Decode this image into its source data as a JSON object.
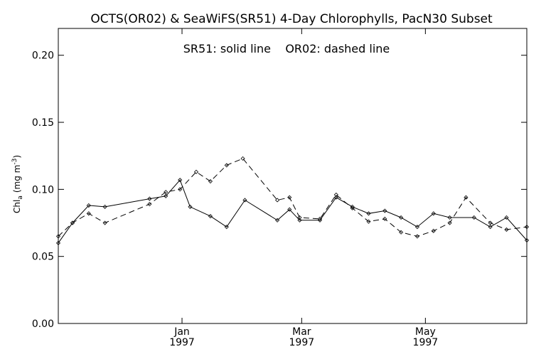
{
  "chart_data": {
    "type": "line",
    "title": "OCTS(OR02) & SeaWiFS(SR51) 4-Day Chlorophylls, PacN30 Subset",
    "annotation": "SR51: solid line    OR02: dashed line",
    "ylabel": "Chl_a (mg m^-3)",
    "ylabel_main": "Chl",
    "ylabel_sub": "a",
    "ylabel_units": "(mg m",
    "ylabel_exp": "-3",
    "ylabel_close": ")",
    "xlabel": "",
    "ylim": [
      0.0,
      0.22
    ],
    "xlim": [
      "1996-11-01",
      "1997-06-20"
    ],
    "yticks": [
      0.0,
      0.05,
      0.1,
      0.15,
      0.2
    ],
    "ytick_labels": [
      "0.00",
      "0.05",
      "0.10",
      "0.15",
      "0.20"
    ],
    "xticks": [
      {
        "date": "1997-01-01",
        "month": "Jan",
        "year": "1997"
      },
      {
        "date": "1997-03-01",
        "month": "Mar",
        "year": "1997"
      },
      {
        "date": "1997-05-01",
        "month": "May",
        "year": "1997"
      }
    ],
    "grid": false,
    "series": [
      {
        "name": "SR51",
        "style": "solid",
        "color": "#000000",
        "points": [
          [
            "1996-11-01",
            0.06
          ],
          [
            "1996-11-08",
            0.075
          ],
          [
            "1996-11-16",
            0.088
          ],
          [
            "1996-11-24",
            0.087
          ],
          [
            "1996-12-16",
            0.093
          ],
          [
            "1996-12-24",
            0.095
          ],
          [
            "1996-12-31",
            0.107
          ],
          [
            "1997-01-05",
            0.087
          ],
          [
            "1997-01-15",
            0.08
          ],
          [
            "1997-01-23",
            0.072
          ],
          [
            "1997-02-01",
            0.092
          ],
          [
            "1997-02-17",
            0.077
          ],
          [
            "1997-02-23",
            0.085
          ],
          [
            "1997-02-28",
            0.077
          ],
          [
            "1997-03-10",
            0.077
          ],
          [
            "1997-03-18",
            0.094
          ],
          [
            "1997-03-26",
            0.087
          ],
          [
            "1997-04-03",
            0.082
          ],
          [
            "1997-04-11",
            0.084
          ],
          [
            "1997-04-19",
            0.079
          ],
          [
            "1997-04-27",
            0.072
          ],
          [
            "1997-05-05",
            0.082
          ],
          [
            "1997-05-13",
            0.079
          ],
          [
            "1997-05-25",
            0.079
          ],
          [
            "1997-06-02",
            0.072
          ],
          [
            "1997-06-10",
            0.079
          ],
          [
            "1997-06-20",
            0.062
          ]
        ]
      },
      {
        "name": "OR02",
        "style": "dashed",
        "color": "#000000",
        "points": [
          [
            "1996-11-01",
            0.065
          ],
          [
            "1996-11-08",
            0.075
          ],
          [
            "1996-11-16",
            0.082
          ],
          [
            "1996-11-24",
            0.075
          ],
          [
            "1996-12-16",
            0.089
          ],
          [
            "1996-12-24",
            0.098
          ],
          [
            "1996-12-31",
            0.1
          ],
          [
            "1997-01-08",
            0.113
          ],
          [
            "1997-01-15",
            0.106
          ],
          [
            "1997-01-23",
            0.118
          ],
          [
            "1997-01-31",
            0.123
          ],
          [
            "1997-02-17",
            0.092
          ],
          [
            "1997-02-23",
            0.094
          ],
          [
            "1997-02-28",
            0.079
          ],
          [
            "1997-03-10",
            0.078
          ],
          [
            "1997-03-18",
            0.096
          ],
          [
            "1997-03-26",
            0.086
          ],
          [
            "1997-04-03",
            0.076
          ],
          [
            "1997-04-11",
            0.078
          ],
          [
            "1997-04-19",
            0.068
          ],
          [
            "1997-04-27",
            0.065
          ],
          [
            "1997-05-05",
            0.069
          ],
          [
            "1997-05-13",
            0.075
          ],
          [
            "1997-05-21",
            0.094
          ],
          [
            "1997-06-02",
            0.075
          ],
          [
            "1997-06-10",
            0.07
          ],
          [
            "1997-06-20",
            0.072
          ]
        ]
      }
    ]
  }
}
